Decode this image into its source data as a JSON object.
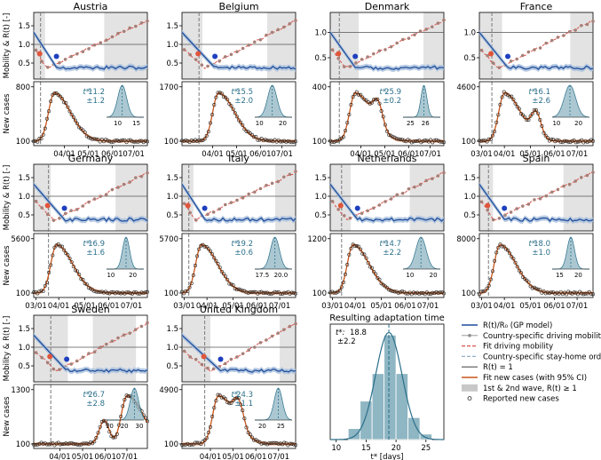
{
  "colors": {
    "rt": "#1f4e9c",
    "rt_band": "#a9bfdc",
    "mobility": "#8c8c8c",
    "fit_mobility": "#d9534f",
    "stayhome": "#7a7a7a",
    "r_one": "#555555",
    "fit_cases": "#c8561a",
    "fit_band": "#f4b48f",
    "wave": "#e3e3e3",
    "dist": "#8fb6c3",
    "tstar": "#2a6f8a",
    "marker_red": "#e0553b",
    "marker_blue": "#1f3fbf"
  },
  "labels": {
    "mobility_ylabel": "Mobility & R(t) [-]",
    "cases_ylabel": "New cases",
    "tstar_prefix": "t*:",
    "summary_title": "Resulting adaptation time",
    "summary_xlabel": "t* [days]"
  },
  "legend": [
    {
      "key": "rt",
      "label": "R(t)/R₀ (GP model)"
    },
    {
      "key": "mobility",
      "label": "Country-specific driving mobility"
    },
    {
      "key": "fit_mobility",
      "label": "Fit driving mobility"
    },
    {
      "key": "stayhome",
      "label": "Country-specific stay-home order"
    },
    {
      "key": "r_one",
      "label": "R(t) = 1"
    },
    {
      "key": "fit_cases",
      "label": "Fit new cases (with 95% CI)"
    },
    {
      "key": "wave",
      "label": "1st & 2nd wave, R(t) ≥ 1"
    },
    {
      "key": "reported",
      "label": "Reported new cases"
    }
  ],
  "chart_data": [
    {
      "type": "line",
      "country": "Austria",
      "mobility_yticks": [
        "1.5",
        "1.0",
        "0.5"
      ],
      "cases_yticks": [
        "800",
        "100"
      ],
      "cases_ymax": 800,
      "x_ticks": [
        "04/01",
        "05/01",
        "06/01",
        "07/01"
      ],
      "tstar": "11.2",
      "tstar_err": "±1.2",
      "inset_ticks": [
        "10",
        "15"
      ],
      "inset_range": [
        7,
        17
      ],
      "tstar_mean": 11.2,
      "tstar_sd": 1.2,
      "peak": [
        0.18,
        800
      ],
      "stayhome": 0.06,
      "wave1": [
        0.0,
        0.1
      ],
      "wave2": [
        0.62,
        1.0
      ],
      "tick_pos": [
        0.27,
        0.48,
        0.69,
        0.88
      ],
      "first_label": "",
      "bump": []
    },
    {
      "type": "line",
      "country": "Belgium",
      "mobility_yticks": [
        "1.5",
        "1.0",
        "0.5"
      ],
      "cases_yticks": [
        "1700",
        "100"
      ],
      "cases_ymax": 1700,
      "x_ticks": [
        "04/01",
        "05/01",
        "06/01",
        "07/01"
      ],
      "tstar": "15.5",
      "tstar_err": "±2.0",
      "inset_ticks": [
        "10",
        "20"
      ],
      "inset_range": [
        8,
        24
      ],
      "tstar_mean": 15.5,
      "tstar_sd": 2.0,
      "peak": [
        0.32,
        1700
      ],
      "stayhome": 0.15,
      "wave1": [
        0.0,
        0.18
      ],
      "wave2": [
        0.75,
        1.0
      ],
      "tick_pos": [
        0.27,
        0.48,
        0.69,
        0.88
      ],
      "first_label": "",
      "bump": []
    },
    {
      "type": "line",
      "country": "Denmark",
      "mobility_yticks": [
        "1.0",
        "0.5"
      ],
      "cases_yticks": [
        "400",
        "100"
      ],
      "cases_ymax": 400,
      "x_ticks": [
        "04/01",
        "05/01",
        "06/01",
        "07/01"
      ],
      "tstar": "25.9",
      "tstar_err": "±0.2",
      "inset_ticks": [
        "25",
        "26"
      ],
      "inset_range": [
        24.5,
        27
      ],
      "tstar_mean": 25.9,
      "tstar_sd": 0.2,
      "peak": [
        0.22,
        400
      ],
      "stayhome": 0.08,
      "wave1": [
        0.0,
        0.25
      ],
      "wave2": [
        0.82,
        1.0
      ],
      "tick_pos": [
        0.27,
        0.48,
        0.69,
        0.88
      ],
      "first_label": "",
      "bump": [
        0.42,
        250
      ]
    },
    {
      "type": "line",
      "country": "France",
      "mobility_yticks": [
        "1.0",
        "0.5"
      ],
      "cases_yticks": [
        "4600",
        "100"
      ],
      "cases_ymax": 4600,
      "x_ticks": [
        "03/01",
        "04/01",
        "05/01",
        "06/01",
        "07/01"
      ],
      "tstar": "16.1",
      "tstar_err": "±2.6",
      "inset_ticks": [
        "10",
        "20"
      ],
      "inset_range": [
        8,
        25
      ],
      "tstar_mean": 16.1,
      "tstar_sd": 2.6,
      "peak": [
        0.22,
        4600
      ],
      "stayhome": 0.11,
      "wave1": [
        0.0,
        0.2
      ],
      "wave2": [
        0.8,
        1.0
      ],
      "tick_pos": [
        0.02,
        0.22,
        0.45,
        0.66,
        0.86
      ],
      "first_label": "03/01",
      "bump": [
        0.5,
        700
      ]
    },
    {
      "type": "line",
      "country": "Germany",
      "mobility_yticks": [
        "1.5",
        "1.0",
        "0.5"
      ],
      "cases_yticks": [
        "5600",
        "100"
      ],
      "cases_ymax": 5600,
      "x_ticks": [
        "03/01",
        "04/01",
        "05/01",
        "06/01",
        "07/01"
      ],
      "tstar": "16.9",
      "tstar_err": "±1.6",
      "inset_ticks": [
        "10",
        "20"
      ],
      "inset_range": [
        8,
        25
      ],
      "tstar_mean": 16.9,
      "tstar_sd": 1.6,
      "peak": [
        0.2,
        5600
      ],
      "stayhome": 0.13,
      "wave1": [
        0.0,
        0.15
      ],
      "wave2": [
        0.72,
        1.0
      ],
      "tick_pos": [
        0.02,
        0.22,
        0.45,
        0.66,
        0.86
      ],
      "first_label": "03/01",
      "bump": []
    },
    {
      "type": "line",
      "country": "Italy",
      "mobility_yticks": [
        "1.5",
        "1.0",
        "0.5"
      ],
      "cases_yticks": [
        "5700",
        "100"
      ],
      "cases_ymax": 5700,
      "x_ticks": [
        "03/01",
        "04/01",
        "05/01",
        "06/01",
        "07/01"
      ],
      "tstar": "19.2",
      "tstar_err": "±0.6",
      "inset_ticks": [
        "17.5",
        "20.0"
      ],
      "inset_range": [
        16.5,
        21.5
      ],
      "tstar_mean": 19.2,
      "tstar_sd": 0.6,
      "peak": [
        0.17,
        5700
      ],
      "stayhome": 0.06,
      "wave1": [
        0.0,
        0.1
      ],
      "wave2": [
        0.82,
        1.0
      ],
      "tick_pos": [
        0.02,
        0.22,
        0.45,
        0.66,
        0.86
      ],
      "first_label": "03/01",
      "bump": []
    },
    {
      "type": "line",
      "country": "Netherlands",
      "mobility_yticks": [
        "1.5",
        "1.0",
        "0.5"
      ],
      "cases_yticks": [
        "1200",
        "100"
      ],
      "cases_ymax": 1200,
      "x_ticks": [
        "03/01",
        "04/01",
        "05/01",
        "06/01",
        "07/01"
      ],
      "tstar": "14.7",
      "tstar_err": "±2.2",
      "inset_ticks": [
        "10",
        "20"
      ],
      "inset_range": [
        7,
        23
      ],
      "tstar_mean": 14.7,
      "tstar_sd": 2.2,
      "peak": [
        0.2,
        1200
      ],
      "stayhome": 0.1,
      "wave1": [
        0.0,
        0.18
      ],
      "wave2": [
        0.7,
        1.0
      ],
      "tick_pos": [
        0.02,
        0.22,
        0.45,
        0.66,
        0.86
      ],
      "first_label": "03/01",
      "bump": []
    },
    {
      "type": "line",
      "country": "Spain",
      "mobility_yticks": [
        "1.5",
        "1.0",
        "0.5"
      ],
      "cases_yticks": [
        "8000",
        "100"
      ],
      "cases_ymax": 8000,
      "x_ticks": [
        "03/01",
        "04/01",
        "05/01",
        "06/01",
        "07/01"
      ],
      "tstar": "18.0",
      "tstar_err": "±1.0",
      "inset_ticks": [
        "15",
        "20"
      ],
      "inset_range": [
        13,
        23
      ],
      "tstar_mean": 18.0,
      "tstar_sd": 1.0,
      "peak": [
        0.18,
        8000
      ],
      "stayhome": 0.08,
      "wave1": [
        0.0,
        0.12
      ],
      "wave2": [
        0.74,
        1.0
      ],
      "tick_pos": [
        0.02,
        0.22,
        0.45,
        0.66,
        0.86
      ],
      "first_label": "03/01",
      "bump": []
    },
    {
      "type": "line",
      "country": "Sweden",
      "mobility_yticks": [
        "1.5",
        "1.0",
        "0.5"
      ],
      "cases_yticks": [
        "1300",
        "100"
      ],
      "cases_ymax": 1300,
      "x_ticks": [
        "04/01",
        "05/01",
        "06/01",
        "07/01"
      ],
      "tstar": "26.7",
      "tstar_err": "±2.8",
      "inset_ticks": [
        "10",
        "20",
        "30"
      ],
      "inset_range": [
        8,
        33
      ],
      "tstar_mean": 26.7,
      "tstar_sd": 2.8,
      "peak": [
        0.82,
        1300
      ],
      "stayhome": 0.15,
      "wave1": [
        0.0,
        0.3
      ],
      "wave2": [
        0.52,
        0.9
      ],
      "tick_pos": [
        0.23,
        0.43,
        0.63,
        0.82
      ],
      "first_label": "",
      "bump": [
        0.62,
        1100
      ]
    },
    {
      "type": "line",
      "country": "United Kingdom",
      "mobility_yticks": [
        "1.5",
        "1.0",
        "0.5"
      ],
      "cases_yticks": [
        "4900",
        "100"
      ],
      "cases_ymax": 4900,
      "x_ticks": [
        "04/01",
        "05/01",
        "06/01",
        "07/01"
      ],
      "tstar": "24.3",
      "tstar_err": "±1.1",
      "inset_ticks": [
        "20",
        "25"
      ],
      "inset_range": [
        18,
        28
      ],
      "tstar_mean": 24.3,
      "tstar_sd": 1.1,
      "peak": [
        0.32,
        4900
      ],
      "stayhome": 0.2,
      "wave1": [
        0.0,
        0.25
      ],
      "wave2": [
        0.86,
        1.0
      ],
      "tick_pos": [
        0.25,
        0.45,
        0.65,
        0.85
      ],
      "first_label": "",
      "bump": [
        0.5,
        4000
      ]
    },
    {
      "type": "histogram",
      "title": "Resulting adaptation time",
      "tstar": "18.8",
      "tstar_err": "±2.2",
      "mean": 18.8,
      "sd": 2.2,
      "x_ticks": [
        10,
        15,
        20,
        25
      ],
      "xlim": [
        9,
        28
      ],
      "bins": [
        [
          12,
          14,
          0.02
        ],
        [
          14,
          16,
          0.07
        ],
        [
          16,
          18,
          0.12
        ],
        [
          18,
          20,
          0.19
        ],
        [
          20,
          22,
          0.12
        ],
        [
          22,
          24,
          0.04
        ],
        [
          24,
          26,
          0.01
        ]
      ]
    }
  ]
}
